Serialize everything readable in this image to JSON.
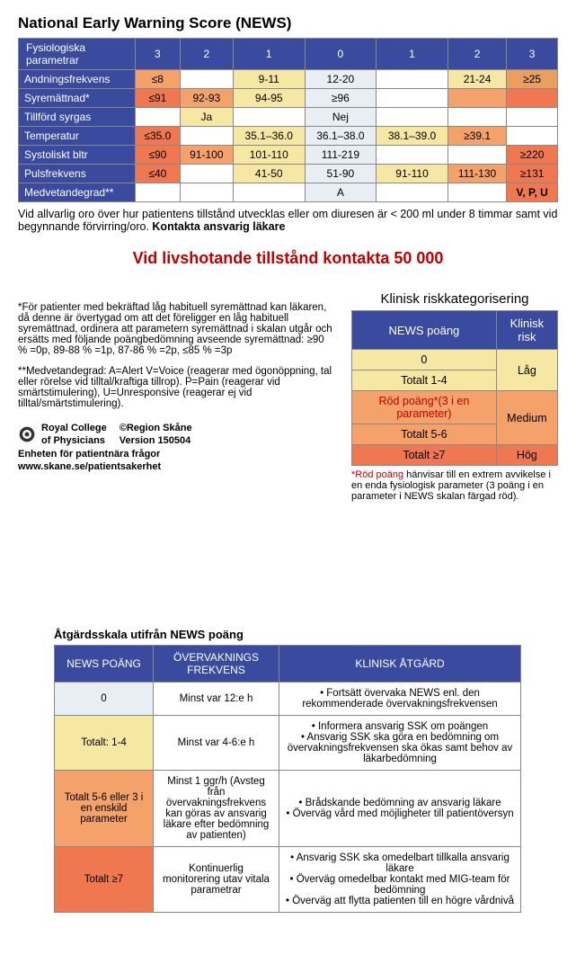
{
  "title": "National Early Warning Score (NEWS)",
  "news_table": {
    "header": [
      "Fysiologiska parametrar",
      "3",
      "2",
      "1",
      "0",
      "1",
      "2",
      "3"
    ],
    "header_bg": "#3a4b9f",
    "rows": [
      {
        "label": "Andningsfrekvens",
        "cells": [
          "≤8",
          "",
          "9-11",
          "12-20",
          "",
          "21-24",
          "≥25"
        ],
        "fills": [
          "#f4a26a",
          "",
          "#f6e7a3",
          "#e8eef4",
          "",
          "#f6e7a3",
          "#e99f60"
        ]
      },
      {
        "label": "Syremättnad*",
        "cells": [
          "≤91",
          "92-93",
          "94-95",
          "≥96",
          "",
          "",
          ""
        ],
        "fills": [
          "#f07850",
          "#f4a26a",
          "#f6e7a3",
          "#e8eef4",
          "",
          "#f4a26a",
          "#f07850"
        ]
      },
      {
        "label": "Tillförd syrgas",
        "cells": [
          "",
          "Ja",
          "",
          "Nej",
          "",
          "",
          ""
        ],
        "fills": [
          "",
          "#f6e7a3",
          "",
          "#e8eef4",
          "",
          "",
          ""
        ]
      },
      {
        "label": "Temperatur",
        "cells": [
          "≤35.0",
          "",
          "35.1–36.0",
          "36.1–38.0",
          "38.1–39.0",
          "≥39.1",
          ""
        ],
        "fills": [
          "#f07850",
          "",
          "#f6e7a3",
          "#e8eef4",
          "#f6e7a3",
          "#f4a26a",
          ""
        ]
      },
      {
        "label": "Systoliskt bltr",
        "cells": [
          "≤90",
          "91-100",
          "101-110",
          "111-219",
          "",
          "",
          "≥220"
        ],
        "fills": [
          "#f07850",
          "#f4a26a",
          "#f6e7a3",
          "#e8eef4",
          "",
          "",
          "#f07850"
        ]
      },
      {
        "label": "Pulsfrekvens",
        "cells": [
          "≤40",
          "",
          "41-50",
          "51-90",
          "91-110",
          "111-130",
          "≥131"
        ],
        "fills": [
          "#f07850",
          "",
          "#f6e7a3",
          "#e8eef4",
          "#f6e7a3",
          "#f4a26a",
          "#f07850"
        ]
      },
      {
        "label": "Medvetandegrad**",
        "cells": [
          "",
          "",
          "",
          "A",
          "",
          "",
          "V, P, U"
        ],
        "fills": [
          "",
          "",
          "",
          "#e8eef4",
          "",
          "",
          "#f07850"
        ]
      }
    ]
  },
  "note1": "Vid allvarlig oro över hur patientens tillstånd utvecklas eller om diuresen är < 200 ml under 8 timmar samt vid begynnande förvirring/oro. ",
  "note1_bold": "Kontakta ansvarig läkare",
  "emergency": "Vid livshotande tillstånd kontakta 50 000",
  "footnotes": {
    "star1": "*För patienter med bekräftad låg habituell syremättnad kan läkaren, då denne är övertygad om att det föreligger en låg habituell syremättnad, ordinera att parametern syremättnad i skalan utgår och ersätts med följande poängbedömning avseende syremättnad: ≥90 % =0p, 89-88 % =1p, 87-86 % =2p, ≤85 % =3p",
    "star2": "**Medvetandegrad: A=Alert V=Voice (reagerar med ögonöppning, tal eller rörelse vid tilltal/kraftiga tillrop). P=Pain (reagerar vid smärtstimulering), U=Unresponsive (reagerar ej vid tilltal/smärtstimulering)."
  },
  "risk": {
    "title": "Klinisk riskkategorisering",
    "header": [
      "NEWS poäng",
      "Klinisk risk"
    ],
    "rows": [
      {
        "left": "0",
        "right": "Låg",
        "lfill": "#f6e7a3",
        "rfill": "#f6e7a3",
        "rspan": 2
      },
      {
        "left": "Totalt 1-4",
        "lfill": "#f6e7a3"
      },
      {
        "left": "Röd poäng*(3 i en parameter)",
        "right": "Medium",
        "lfill": "#f4a26a",
        "rfill": "#f4a26a",
        "rspan": 2,
        "red": true
      },
      {
        "left": "Totalt 5-6",
        "lfill": "#f4a26a"
      },
      {
        "left": "Totalt ≥7",
        "right": "Hög",
        "lfill": "#f07850",
        "rfill": "#f07850",
        "rspan": 1
      }
    ],
    "footnote_red": "*Röd poäng",
    "footnote_rest": " hänvisar till en extrem avvikelse i en enda fysiologisk parameter (3 poäng i en parameter i NEWS skalan färgad röd)."
  },
  "credits": {
    "org1a": "Royal College",
    "org1b": "of Physicians",
    "org2": "©Region Skåne",
    "version": "Version 150504",
    "unit": "Enheten för patientnära frågor",
    "url": "www.skane.se/patientsakerhet"
  },
  "action": {
    "title": "Åtgärdsskala utifrån NEWS poäng",
    "header": [
      "NEWS POÄNG",
      "ÖVERVAKNINGS FREKVENS",
      "KLINISK ÅTGÄRD"
    ],
    "rows": [
      {
        "score": "0",
        "fill": "#e8eef4",
        "freq": "Minst var 12:e h",
        "actions": [
          "Fortsätt övervaka NEWS enl. den rekommenderade övervakningsfrekvensen"
        ]
      },
      {
        "score": "Totalt: 1-4",
        "fill": "#f6e7a3",
        "freq": "Minst var 4-6:e h",
        "actions": [
          "Informera ansvarig SSK om poängen",
          "Ansvarig SSK ska göra en bedömning om övervakningsfrekvensen ska ökas samt behov av läkarbedömning"
        ]
      },
      {
        "score": "Totalt 5-6 eller 3 i en enskild parameter",
        "fill": "#f4a26a",
        "freq": "Minst 1 ggr/h (Avsteg från övervakningsfrekvens kan göras av ansvarig läkare efter bedömning av patienten)",
        "actions": [
          "Brådskande bedömning av ansvarig läkare",
          "Överväg vård med möjligheter till patientöversyn"
        ]
      },
      {
        "score": "Totalt ≥7",
        "fill": "#f07850",
        "freq": "Kontinuerlig monitorering utav vitala parametrar",
        "actions": [
          "Ansvarig SSK ska omedelbart tillkalla ansvarig läkare",
          "Överväg omedelbar kontakt med MIG-team för bedömning",
          "Överväg att flytta patienten till en högre vårdnivå"
        ]
      }
    ]
  }
}
